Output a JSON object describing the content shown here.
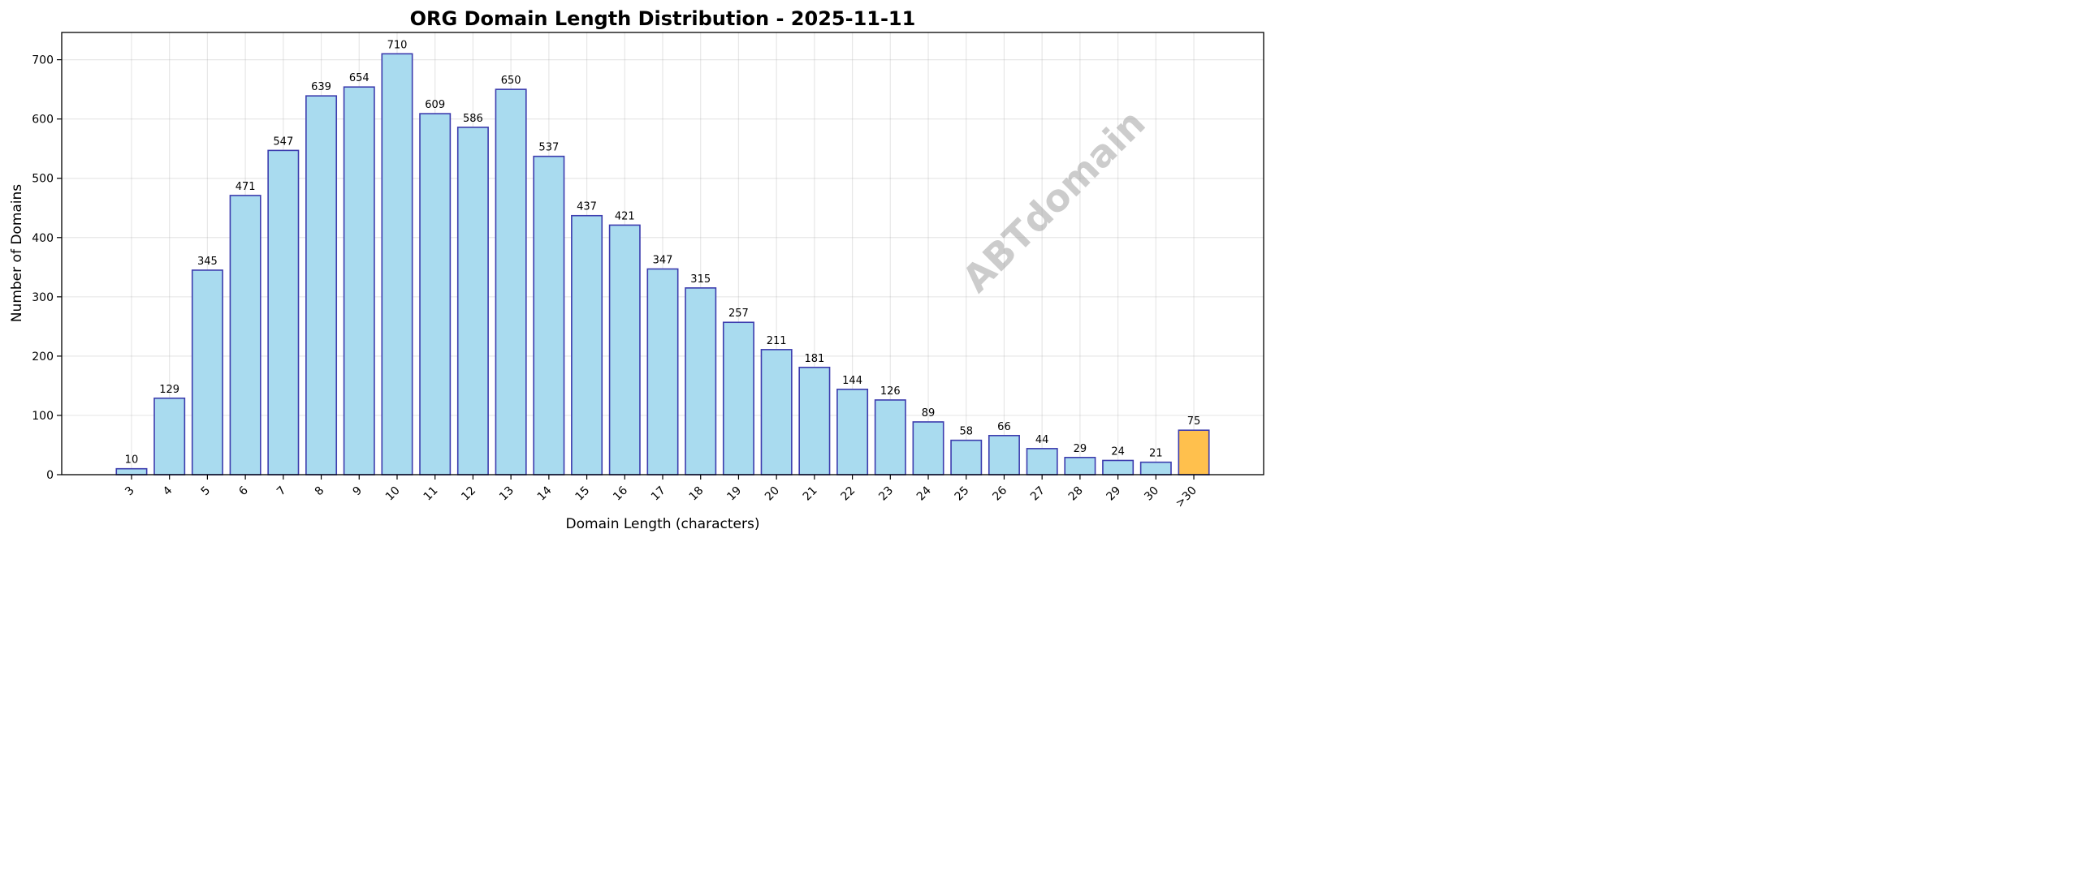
{
  "chart_data": {
    "type": "bar",
    "title": "ORG Domain Length Distribution - 2025-11-11",
    "xlabel": "Domain Length (characters)",
    "ylabel": "Number of Domains",
    "categories": [
      "3",
      "4",
      "5",
      "6",
      "7",
      "8",
      "9",
      "10",
      "11",
      "12",
      "13",
      "14",
      "15",
      "16",
      "17",
      "18",
      "19",
      "20",
      "21",
      "22",
      "23",
      "24",
      "25",
      "26",
      "27",
      "28",
      "29",
      "30",
      ">30"
    ],
    "values": [
      10,
      129,
      345,
      471,
      547,
      639,
      654,
      710,
      609,
      586,
      650,
      537,
      437,
      421,
      347,
      315,
      257,
      211,
      181,
      144,
      126,
      89,
      58,
      66,
      44,
      29,
      24,
      21,
      75
    ],
    "ylim": [
      0,
      746
    ],
    "yticks": [
      0,
      100,
      200,
      300,
      400,
      500,
      600,
      700
    ],
    "grid": true,
    "watermark": "ABTdomain",
    "colors": {
      "bar_fill": "#a9dbef",
      "bar_edge": "#3c3cae",
      "highlight_fill": "#ffc04d",
      "highlight_category": ">30"
    }
  }
}
